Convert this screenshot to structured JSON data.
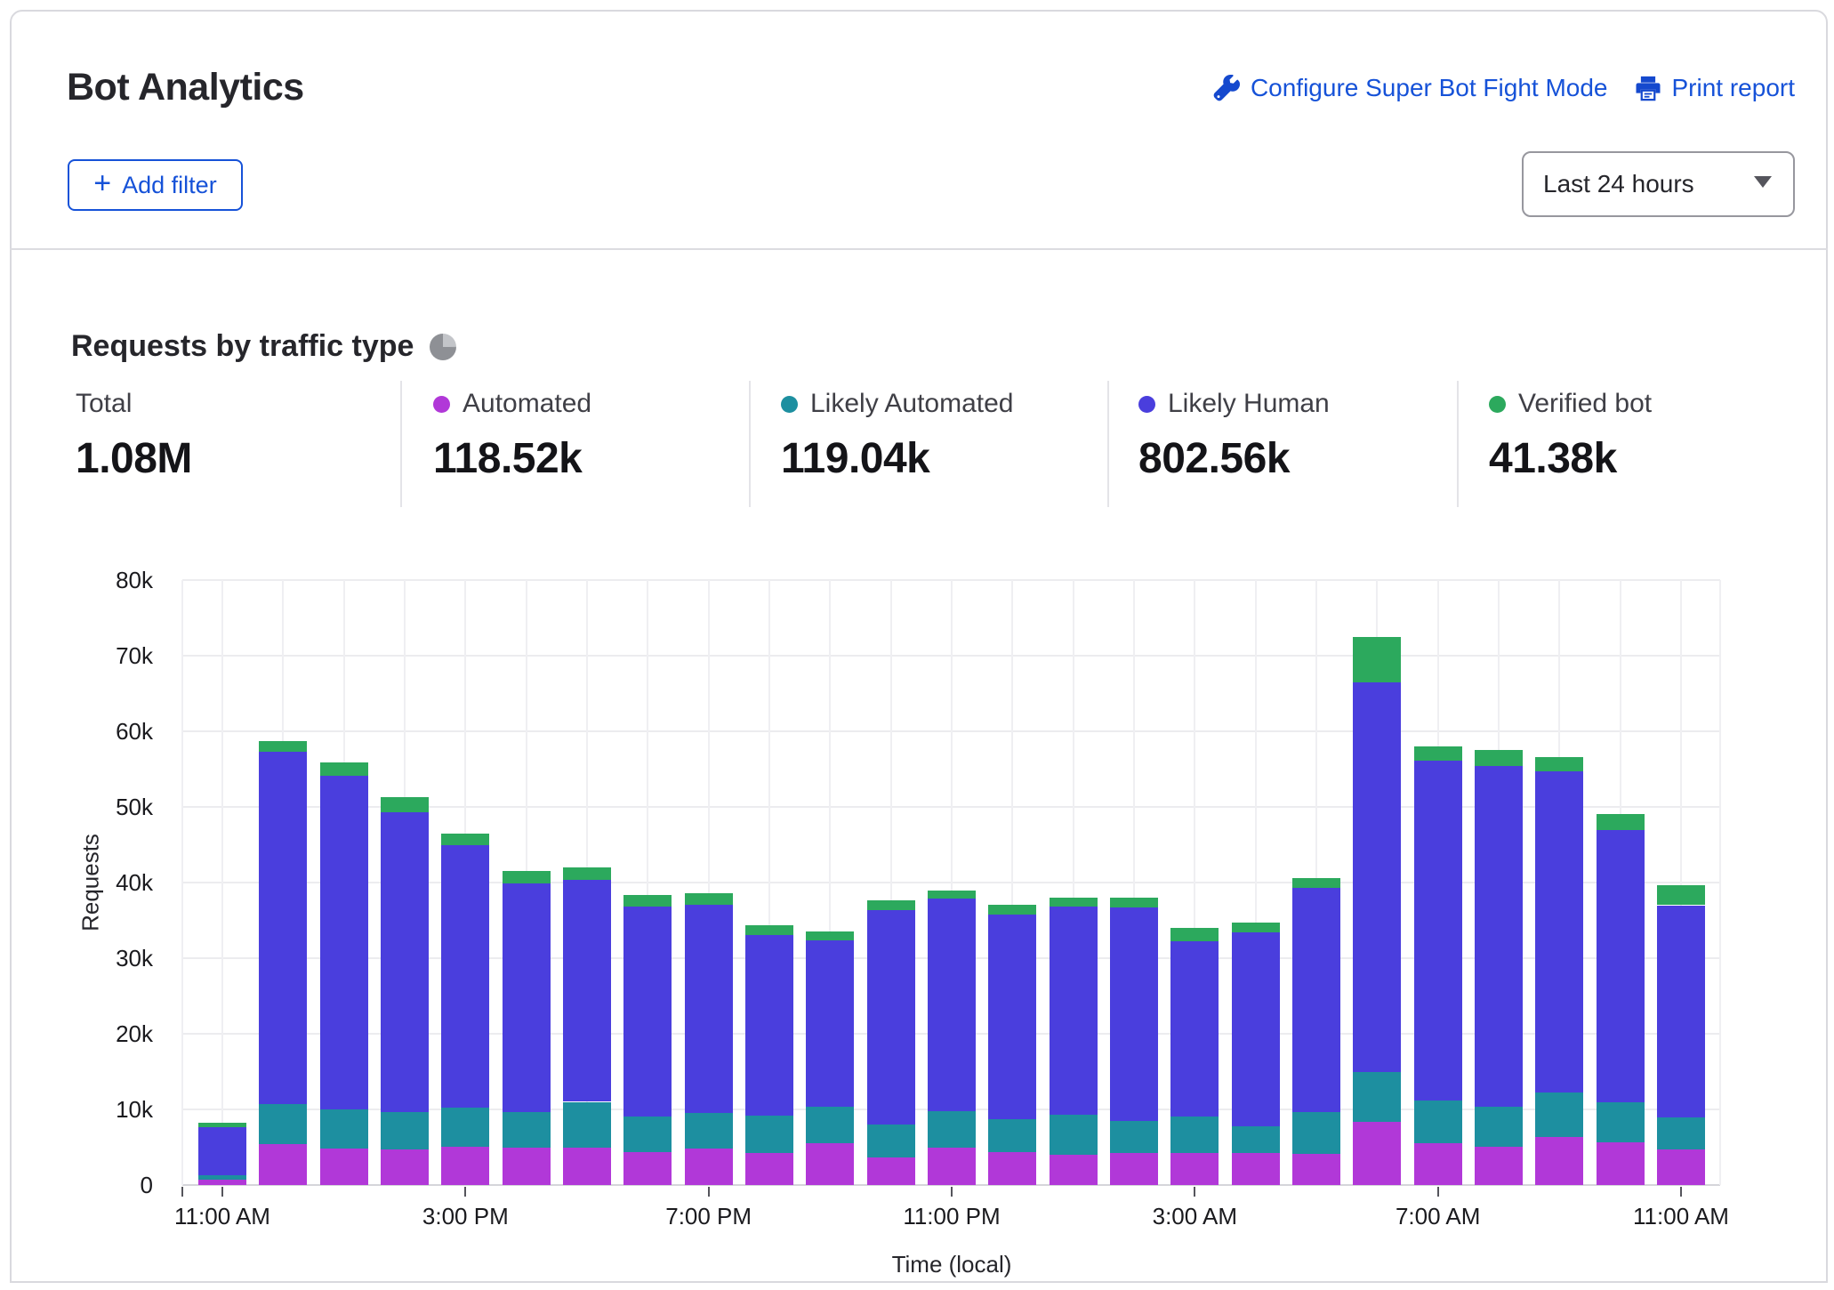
{
  "header": {
    "title": "Bot Analytics",
    "configure_link": "Configure Super Bot Fight Mode",
    "print_link": "Print report",
    "add_filter_plus": "+",
    "add_filter_label": "Add filter",
    "time_range": "Last 24 hours"
  },
  "section": {
    "heading": "Requests by traffic type"
  },
  "stats": {
    "items": [
      {
        "label": "Total",
        "value": "1.08M",
        "color": null
      },
      {
        "label": "Automated",
        "value": "118.52k",
        "color": "#B138D8"
      },
      {
        "label": "Likely Automated",
        "value": "119.04k",
        "color": "#1D8FA0"
      },
      {
        "label": "Likely Human",
        "value": "802.56k",
        "color": "#4A3EDD"
      },
      {
        "label": "Verified bot",
        "value": "41.38k",
        "color": "#2CA95D"
      }
    ]
  },
  "chart_data": {
    "type": "bar",
    "stacked": true,
    "title": "Requests by traffic type",
    "xlabel": "Time (local)",
    "ylabel": "Requests",
    "ylim": [
      0,
      80000
    ],
    "ytick_step": 10000,
    "ytick_labels": [
      "0",
      "10k",
      "20k",
      "30k",
      "40k",
      "50k",
      "60k",
      "70k",
      "80k"
    ],
    "grid": true,
    "legend_position": "top",
    "x": [
      "11:00 AM",
      "12:00 PM",
      "1:00 PM",
      "2:00 PM",
      "3:00 PM",
      "4:00 PM",
      "5:00 PM",
      "6:00 PM",
      "7:00 PM",
      "8:00 PM",
      "9:00 PM",
      "10:00 PM",
      "11:00 PM",
      "12:00 AM",
      "1:00 AM",
      "2:00 AM",
      "3:00 AM",
      "4:00 AM",
      "5:00 AM",
      "6:00 AM",
      "7:00 AM",
      "8:00 AM",
      "9:00 AM",
      "10:00 AM",
      "11:00 AM"
    ],
    "xtick_every": 4,
    "xtick_labels": [
      "11:00 AM",
      "3:00 PM",
      "7:00 PM",
      "11:00 PM",
      "3:00 AM",
      "7:00 AM",
      "11:00 AM"
    ],
    "series": [
      {
        "name": "Automated",
        "color": "#B138D8",
        "values": [
          700,
          5400,
          4800,
          4700,
          5100,
          4900,
          5000,
          4400,
          4800,
          4200,
          5500,
          3700,
          4900,
          4400,
          4000,
          4200,
          4200,
          4200,
          4100,
          8400,
          5500,
          5100,
          6300,
          5600,
          4700
        ]
      },
      {
        "name": "Likely Automated",
        "color": "#1D8FA0",
        "values": [
          600,
          5300,
          5200,
          5000,
          5100,
          4700,
          6000,
          4700,
          4700,
          5000,
          4800,
          4300,
          4900,
          4300,
          5300,
          4300,
          4900,
          3600,
          5600,
          6600,
          5700,
          5200,
          5900,
          5300,
          4200
        ]
      },
      {
        "name": "Likely Human",
        "color": "#4A3EDD",
        "values": [
          6400,
          46600,
          44100,
          39600,
          34800,
          30300,
          29400,
          27700,
          27600,
          23900,
          22100,
          28400,
          28100,
          27100,
          27500,
          28200,
          23100,
          25600,
          29600,
          51500,
          44900,
          45100,
          42500,
          36000,
          28100
        ]
      },
      {
        "name": "Verified bot",
        "color": "#2CA95D",
        "values": [
          500,
          1400,
          1800,
          2000,
          1500,
          1600,
          1600,
          1600,
          1500,
          1300,
          1100,
          1300,
          1100,
          1300,
          1200,
          1300,
          1800,
          1300,
          1300,
          6000,
          1900,
          2100,
          1900,
          2200,
          2700
        ]
      }
    ]
  }
}
